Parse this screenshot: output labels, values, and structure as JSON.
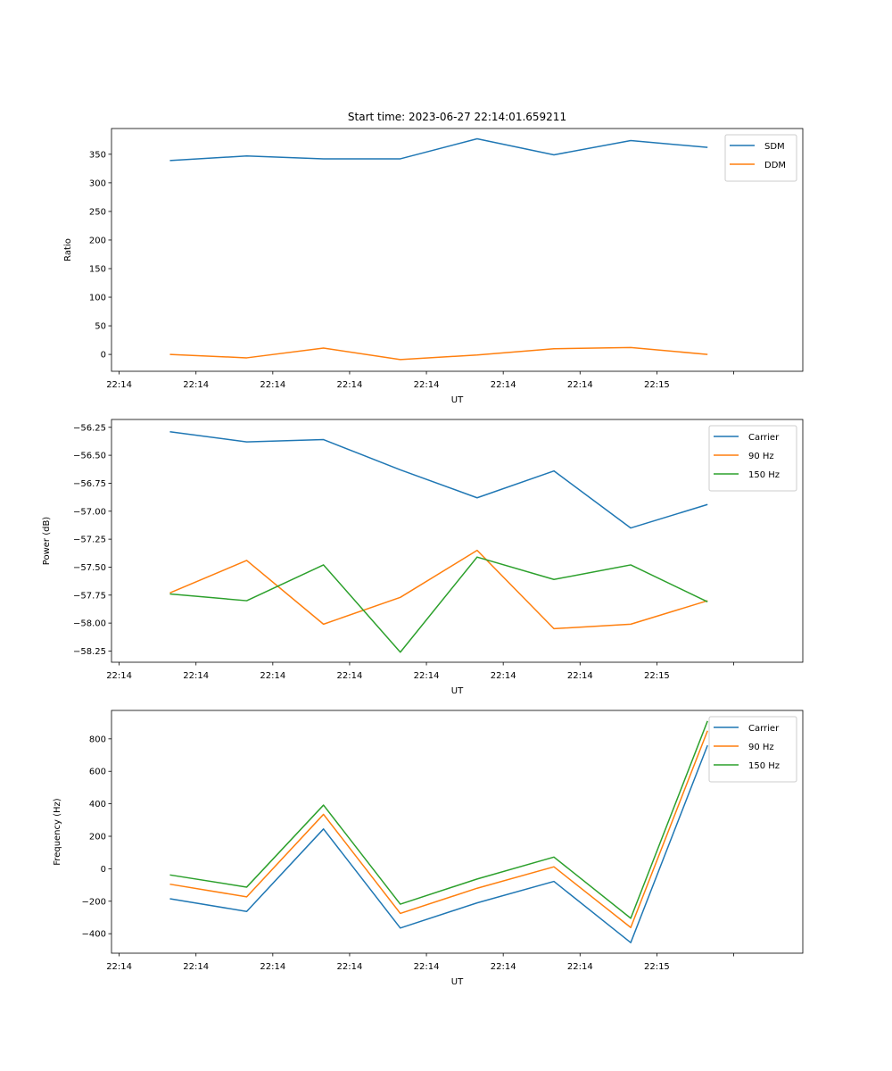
{
  "figure": {
    "title": "Start time: 2023-06-27 22:14:01.659211"
  },
  "chart_data": [
    {
      "type": "line",
      "title": "Start time: 2023-06-27 22:14:01.659211",
      "xlabel": "UT",
      "ylabel": "Ratio",
      "x": [
        "22:14:02.66",
        "22:14:03.66",
        "22:14:04.66",
        "22:14:05.66",
        "22:14:06.66",
        "22:14:07.66",
        "22:14:08.66",
        "22:14:09.66"
      ],
      "xlim": [
        "22:14:01.90",
        "22:14:10.90"
      ],
      "x_tick_labels": [
        "22:14",
        "22:14",
        "22:14",
        "22:14",
        "22:14",
        "22:14",
        "22:14",
        "22:15"
      ],
      "ylim": [
        -29.5,
        395
      ],
      "y_ticks": [
        0,
        50,
        100,
        150,
        200,
        250,
        300,
        350
      ],
      "grid": false,
      "legend_position": "top-right",
      "series": [
        {
          "name": "SDM",
          "color": "#1f77b4",
          "values": [
            339,
            347,
            342,
            342,
            377,
            349,
            374,
            362
          ]
        },
        {
          "name": "DDM",
          "color": "#ff7f0e",
          "values": [
            0,
            -6,
            11,
            -9,
            -1,
            10,
            12,
            0
          ]
        }
      ]
    },
    {
      "type": "line",
      "xlabel": "UT",
      "ylabel": "Power (dB)",
      "x": [
        "22:14:02.66",
        "22:14:03.66",
        "22:14:04.66",
        "22:14:05.66",
        "22:14:06.66",
        "22:14:07.66",
        "22:14:08.66",
        "22:14:09.66"
      ],
      "xlim": [
        "22:14:01.90",
        "22:14:10.90"
      ],
      "x_tick_labels": [
        "22:14",
        "22:14",
        "22:14",
        "22:14",
        "22:14",
        "22:14",
        "22:14",
        "22:15"
      ],
      "ylim": [
        -58.35,
        -56.18
      ],
      "y_ticks": [
        -58.25,
        -58.0,
        -57.75,
        -57.5,
        -57.25,
        -57.0,
        -56.75,
        -56.5,
        -56.25
      ],
      "y_tick_labels": [
        "−58.25",
        "−58.00",
        "−57.75",
        "−57.50",
        "−57.25",
        "−57.00",
        "−56.75",
        "−56.50",
        "−56.25"
      ],
      "grid": false,
      "legend_position": "top-right",
      "series": [
        {
          "name": "Carrier",
          "color": "#1f77b4",
          "values": [
            -56.29,
            -56.38,
            -56.36,
            -56.63,
            -56.88,
            -56.64,
            -57.15,
            -56.94
          ]
        },
        {
          "name": "90 Hz",
          "color": "#ff7f0e",
          "values": [
            -57.73,
            -57.44,
            -58.01,
            -57.77,
            -57.35,
            -58.05,
            -58.01,
            -57.8
          ]
        },
        {
          "name": "150 Hz",
          "color": "#2ca02c",
          "values": [
            -57.74,
            -57.8,
            -57.48,
            -58.26,
            -57.41,
            -57.61,
            -57.48,
            -57.81
          ]
        }
      ]
    },
    {
      "type": "line",
      "xlabel": "UT",
      "ylabel": "Frequency (Hz)",
      "x": [
        "22:14:02.66",
        "22:14:03.66",
        "22:14:04.66",
        "22:14:05.66",
        "22:14:06.66",
        "22:14:07.66",
        "22:14:08.66",
        "22:14:09.66"
      ],
      "xlim": [
        "22:14:01.90",
        "22:14:10.90"
      ],
      "x_tick_labels": [
        "22:14",
        "22:14",
        "22:14",
        "22:14",
        "22:14",
        "22:14",
        "22:14",
        "22:15"
      ],
      "ylim": [
        -520,
        975
      ],
      "y_ticks": [
        -400,
        -200,
        0,
        200,
        400,
        600,
        800
      ],
      "y_tick_labels": [
        "−400",
        "−200",
        "0",
        "200",
        "400",
        "600",
        "800"
      ],
      "grid": false,
      "legend_position": "top-right",
      "series": [
        {
          "name": "Carrier",
          "color": "#1f77b4",
          "values": [
            -185,
            -263,
            245,
            -365,
            -210,
            -78,
            -455,
            760
          ]
        },
        {
          "name": "90 Hz",
          "color": "#ff7f0e",
          "values": [
            -95,
            -173,
            335,
            -275,
            -120,
            12,
            -362,
            850
          ]
        },
        {
          "name": "150 Hz",
          "color": "#2ca02c",
          "values": [
            -38,
            -113,
            392,
            -218,
            -63,
            72,
            -305,
            910
          ]
        }
      ]
    }
  ]
}
